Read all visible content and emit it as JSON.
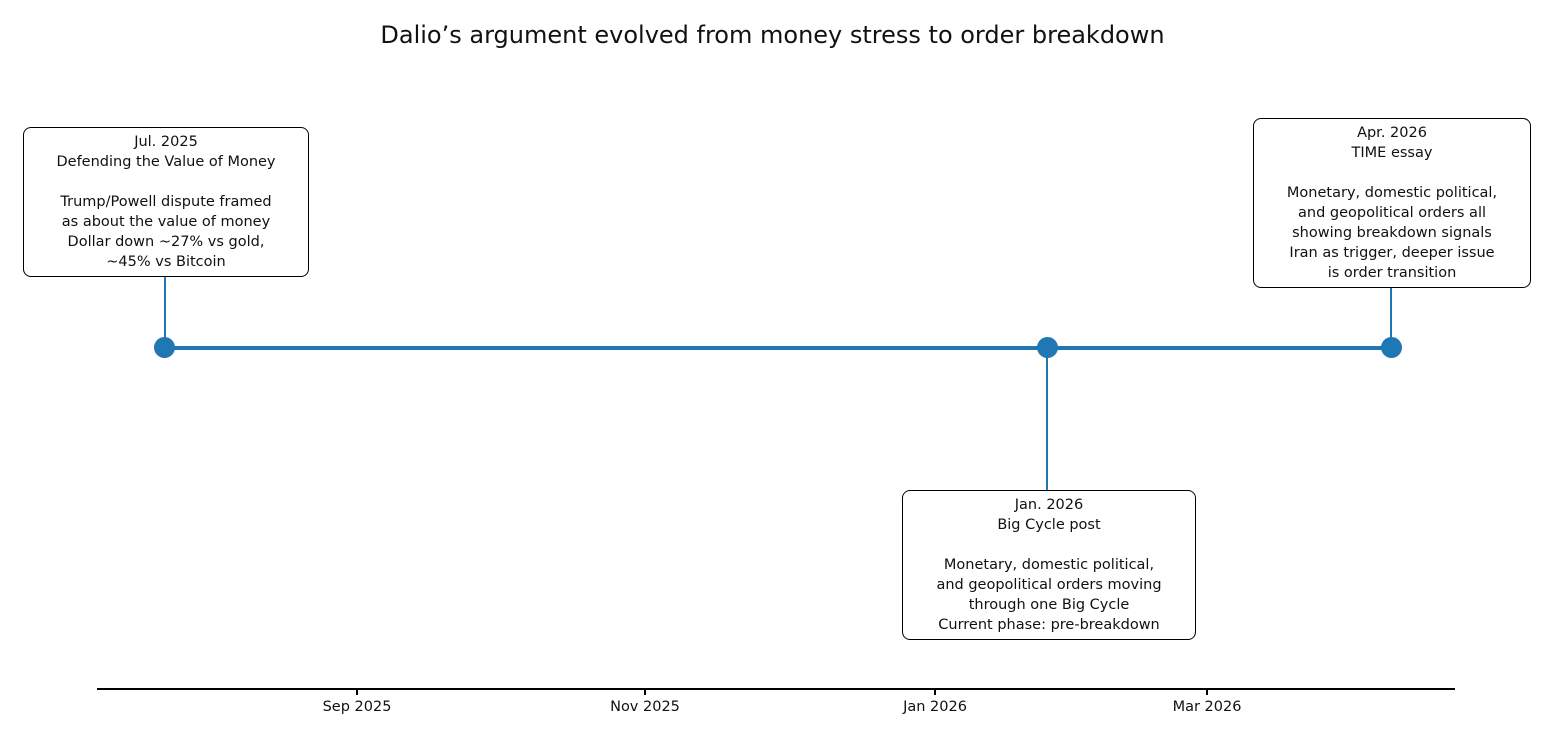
{
  "chart_data": {
    "type": "timeline",
    "title": "Dalio’s argument evolved from money stress to order breakdown",
    "x_axis": {
      "tick_labels": [
        "Sep 2025",
        "Nov 2025",
        "Jan 2026",
        "Mar 2026"
      ],
      "range_approx": [
        "Jul 2025",
        "Apr 2026"
      ],
      "grid": false
    },
    "events": [
      {
        "date": "Jul. 2025",
        "label": "Defending the Value of Money",
        "details": [
          "Trump/Powell dispute framed",
          "as about the value of money",
          "Dollar down ~27% vs gold,",
          "~45% vs Bitcoin"
        ],
        "annotation_side": "above"
      },
      {
        "date": "Jan. 2026",
        "label": "Big Cycle post",
        "details": [
          "Monetary, domestic political,",
          "and geopolitical orders moving",
          "through one Big Cycle",
          "Current phase: pre-breakdown"
        ],
        "annotation_side": "below"
      },
      {
        "date": "Apr. 2026",
        "label": "TIME essay",
        "details": [
          "Monetary, domestic political,",
          "and geopolitical orders all",
          "showing breakdown signals",
          "Iran as trigger, deeper issue",
          "is order transition"
        ],
        "annotation_side": "above"
      }
    ],
    "colors": {
      "timeline": "#1f77b4",
      "marker": "#1f77b4",
      "box_border": "#000000",
      "box_fill": "#ffffff",
      "axis": "#000000",
      "background": "#ffffff",
      "text": "#111111"
    },
    "legend": false
  }
}
